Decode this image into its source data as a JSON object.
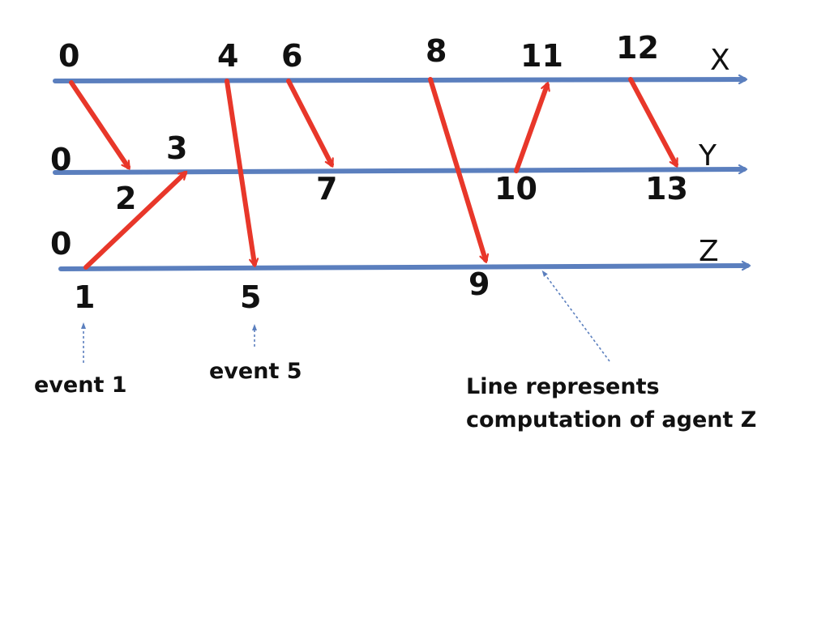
{
  "colors": {
    "timeline": "#5b7fbe",
    "message": "#e8372a",
    "pointer": "#5b7fbe",
    "text": "#111111"
  },
  "timelines": [
    {
      "label": "X"
    },
    {
      "label": "Y"
    },
    {
      "label": "Z"
    }
  ],
  "event_labels": {
    "x0": "0",
    "x4": "4",
    "x6": "6",
    "x8": "8",
    "x11": "11",
    "x12": "12",
    "y0": "0",
    "y2": "2",
    "y3": "3",
    "y7": "7",
    "y10": "10",
    "y13": "13",
    "z0": "0",
    "z1": "1",
    "z5": "5",
    "z9": "9"
  },
  "messages": [
    {
      "from": "X@0",
      "to": "Y@2"
    },
    {
      "from": "Z@1",
      "to": "Y@3"
    },
    {
      "from": "X@4",
      "to": "Z@5"
    },
    {
      "from": "X@6",
      "to": "Y@7"
    },
    {
      "from": "X@8",
      "to": "Z@9"
    },
    {
      "from": "Y@10",
      "to": "X@11"
    },
    {
      "from": "X@12",
      "to": "Y@13"
    }
  ],
  "annotations": {
    "event1": "event 1",
    "event5": "event 5",
    "line_note_1": "Line represents",
    "line_note_2": "computation of agent Z"
  }
}
